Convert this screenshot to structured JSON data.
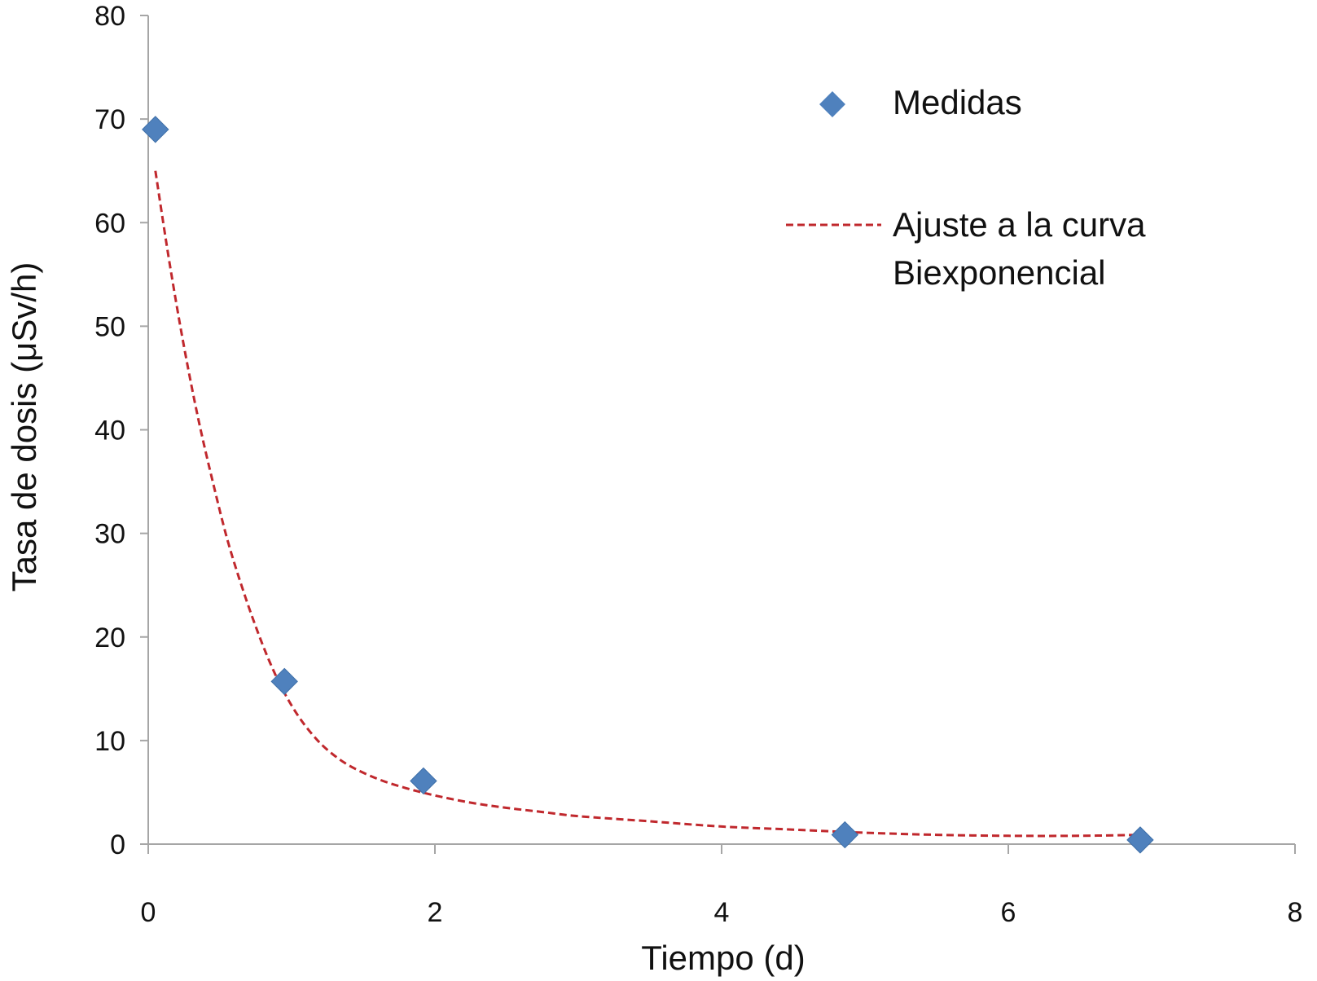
{
  "chart_data": {
    "type": "scatter",
    "xlabel": "Tiempo (d)",
    "ylabel": "Tasa de dosis (μSv/h)",
    "xlim": [
      0,
      8
    ],
    "ylim": [
      0,
      80
    ],
    "x_ticks": [
      0,
      2,
      4,
      6,
      8
    ],
    "y_ticks": [
      0,
      10,
      20,
      30,
      40,
      50,
      60,
      70,
      80
    ],
    "grid": false,
    "legend_position": "top-right",
    "series": [
      {
        "name": "Medidas",
        "kind": "scatter",
        "marker": "diamond",
        "color": "#4f81bd",
        "x": [
          0.05,
          0.95,
          1.92,
          4.86,
          6.92
        ],
        "y": [
          69,
          15.7,
          6.1,
          0.9,
          0.4
        ]
      },
      {
        "name": "Ajuste a la curva Biexponencial",
        "legend_lines": [
          "Ajuste a la curva",
          "Biexponencial"
        ],
        "kind": "line",
        "style": "dashed",
        "color": "#c0282d",
        "x": [
          0.05,
          0.15,
          0.25,
          0.35,
          0.45,
          0.55,
          0.65,
          0.75,
          0.85,
          0.95,
          1.05,
          1.15,
          1.25,
          1.4,
          1.6,
          1.8,
          2.0,
          2.25,
          2.5,
          2.75,
          3.0,
          3.5,
          4.0,
          4.5,
          5.0,
          5.5,
          6.0,
          6.5,
          6.92
        ],
        "y": [
          65,
          56,
          48,
          41,
          35,
          29.5,
          25,
          21,
          17.5,
          14.6,
          12.3,
          10.5,
          9.1,
          7.6,
          6.3,
          5.4,
          4.7,
          4.0,
          3.5,
          3.1,
          2.7,
          2.2,
          1.7,
          1.4,
          1.1,
          0.9,
          0.8,
          0.8,
          0.9
        ]
      }
    ]
  }
}
